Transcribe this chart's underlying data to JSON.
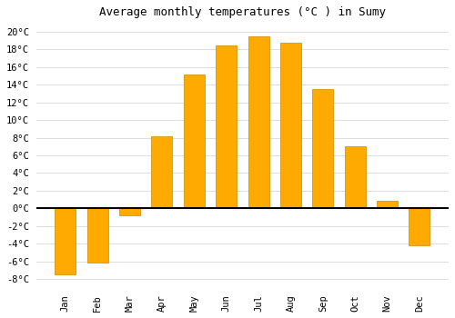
{
  "title": "Average monthly temperatures (°C ) in Sumy",
  "months": [
    "Jan",
    "Feb",
    "Mar",
    "Apr",
    "May",
    "Jun",
    "Jul",
    "Aug",
    "Sep",
    "Oct",
    "Nov",
    "Dec"
  ],
  "temperatures": [
    -7.5,
    -6.2,
    -0.8,
    8.2,
    15.2,
    18.5,
    19.5,
    18.8,
    13.5,
    7.0,
    0.8,
    -4.2
  ],
  "bar_color": "#FFAA00",
  "bar_edge_color": "#CC8800",
  "background_color": "#FFFFFF",
  "plot_bg_color": "#FFFFFF",
  "grid_color": "#DDDDDD",
  "ylim": [
    -9,
    21
  ],
  "yticks": [
    -8,
    -6,
    -4,
    -2,
    0,
    2,
    4,
    6,
    8,
    10,
    12,
    14,
    16,
    18,
    20
  ],
  "ytick_labels": [
    "-8°C",
    "-6°C",
    "-4°C",
    "-2°C",
    "0°C",
    "2°C",
    "4°C",
    "6°C",
    "8°C",
    "10°C",
    "12°C",
    "14°C",
    "16°C",
    "18°C",
    "20°C"
  ],
  "title_fontsize": 9,
  "tick_fontsize": 7.5,
  "font_family": "monospace",
  "bar_width": 0.65
}
